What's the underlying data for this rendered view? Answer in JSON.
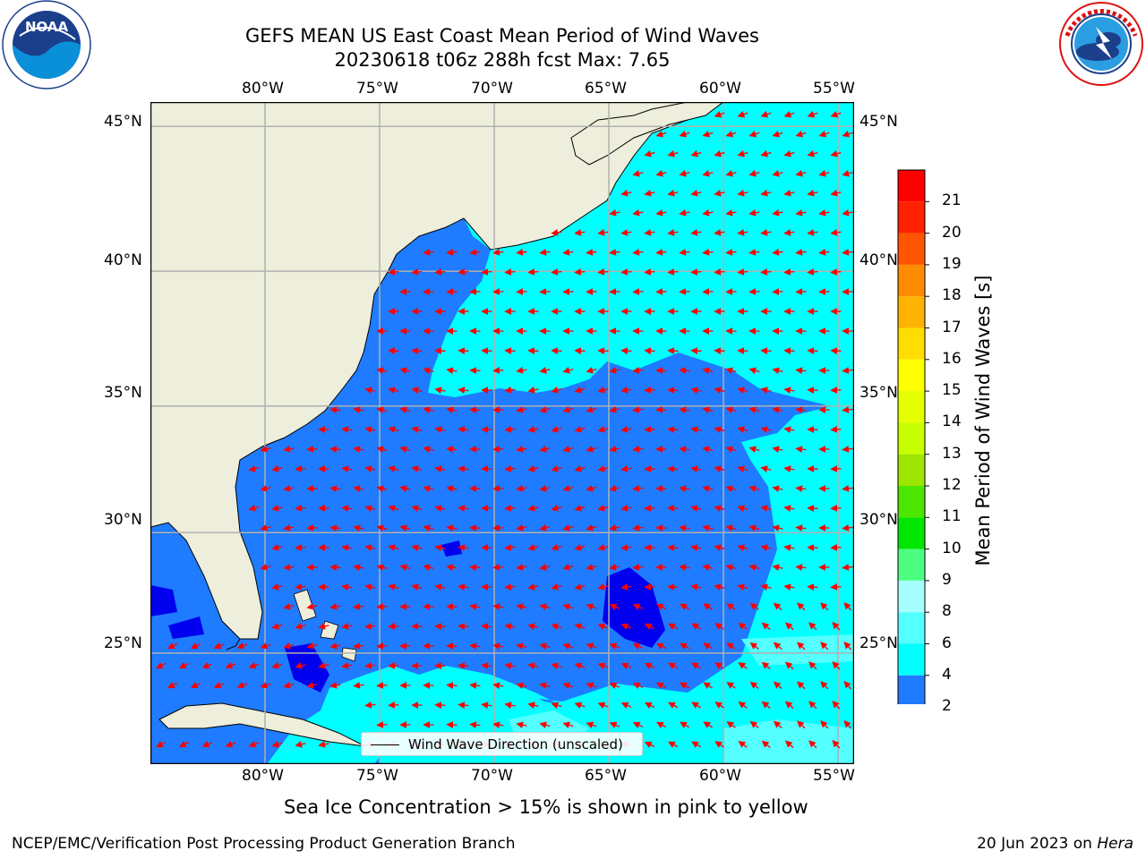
{
  "header": {
    "title_line1": "GEFS MEAN US East Coast Mean Period of Wind Waves",
    "title_line2": "20230618 t06z 288h fcst   Max: 7.65"
  },
  "logos": {
    "noaa_text": "NOAA",
    "noaa_ring_text": "NATIONAL OCEANIC AND ATMOSPHERIC ADMINISTRATION · U.S. DEPARTMENT OF COMMERCE",
    "nws_ring_text": "NATIONAL WEATHER SERVICE"
  },
  "map": {
    "lon_ticks": [
      "80°W",
      "75°W",
      "70°W",
      "65°W",
      "60°W",
      "55°W"
    ],
    "lat_ticks": [
      "45°N",
      "40°N",
      "35°N",
      "30°N",
      "25°N"
    ],
    "extent": {
      "lon_min": -85,
      "lon_max": -54.3,
      "lat_min": 20.2,
      "lat_max": 45.8
    },
    "colors": {
      "land": "#eeeedc",
      "band_2_4": "#1f7bff",
      "band_lt_2": "#0000ee",
      "band_4_6": "#00ffff",
      "band_6_8": "#53ffff",
      "arrow": "#ff0000",
      "grid": "#b0b0b0"
    },
    "legend_label": "Wind Wave Direction (unscaled)"
  },
  "colorbar": {
    "label": "Mean Period of Wind Waves [s]",
    "ticks": [
      "2",
      "4",
      "6",
      "8",
      "9",
      "10",
      "11",
      "12",
      "13",
      "14",
      "15",
      "16",
      "17",
      "18",
      "19",
      "20",
      "21"
    ],
    "under_color": "#0000ee",
    "colors": [
      "#1f7bff",
      "#00ffff",
      "#53ffff",
      "#a6ffff",
      "#4dff80",
      "#00e600",
      "#4de600",
      "#9ce600",
      "#c8ff00",
      "#e6ff00",
      "#ffff00",
      "#ffdd00",
      "#ffb300",
      "#ff8c00",
      "#ff5500",
      "#ff2200",
      "#ff0000"
    ]
  },
  "footer": {
    "sea_ice_note": "Sea Ice Concentration > 15% is shown in pink to yellow",
    "branch": "NCEP/EMC/Verification Post Processing Product Generation Branch",
    "date": "20 Jun 2023 on",
    "machine": "Hera"
  }
}
